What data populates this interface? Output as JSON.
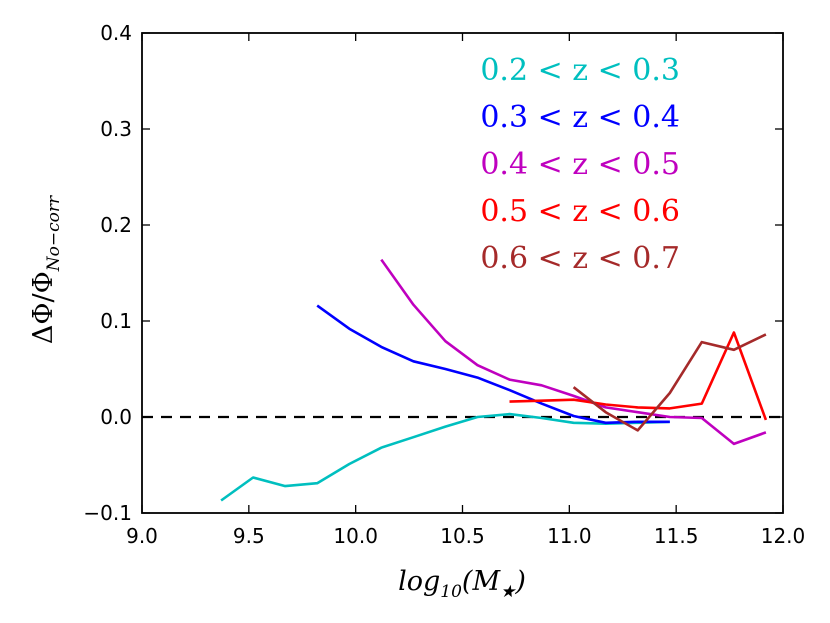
{
  "chart_data": {
    "type": "line",
    "title": "",
    "xlabel": "log10(M★)",
    "ylabel": "ΔΦ/Φ_No−corr",
    "xlim": [
      9.0,
      12.0
    ],
    "ylim": [
      -0.1,
      0.4
    ],
    "xticks": [
      9.0,
      9.5,
      10.0,
      10.5,
      11.0,
      11.5,
      12.0
    ],
    "xtick_labels": [
      "9.0",
      "9.5",
      "10.0",
      "10.5",
      "11.0",
      "11.5",
      "12.0"
    ],
    "yticks": [
      -0.1,
      0.0,
      0.1,
      0.2,
      0.3,
      0.4
    ],
    "ytick_labels": [
      "−0.1",
      "0.0",
      "0.1",
      "0.2",
      "0.3",
      "0.4"
    ],
    "reference_line": {
      "y": 0.0,
      "style": "dashed",
      "color": "#000000"
    },
    "legend_position": "top-right",
    "series": [
      {
        "name": "0.2 < z < 0.3",
        "color": "#00BFBF",
        "x": [
          9.37,
          9.52,
          9.67,
          9.82,
          9.97,
          10.12,
          10.27,
          10.42,
          10.57,
          10.72,
          10.87,
          11.02,
          11.17,
          11.32,
          11.47
        ],
        "y": [
          -0.087,
          -0.063,
          -0.072,
          -0.069,
          -0.049,
          -0.032,
          -0.021,
          -0.01,
          0.0,
          0.003,
          -0.001,
          -0.006,
          -0.007,
          -0.006,
          -0.005
        ]
      },
      {
        "name": "0.3 < z < 0.4",
        "color": "#0000FF",
        "x": [
          9.82,
          9.97,
          10.12,
          10.27,
          10.42,
          10.57,
          10.72,
          10.87,
          11.02,
          11.17,
          11.32,
          11.47
        ],
        "y": [
          0.116,
          0.092,
          0.073,
          0.058,
          0.05,
          0.041,
          0.028,
          0.014,
          0.001,
          -0.006,
          -0.005,
          -0.005
        ]
      },
      {
        "name": "0.4 < z < 0.5",
        "color": "#BF00BF",
        "x": [
          10.12,
          10.27,
          10.42,
          10.57,
          10.72,
          10.87,
          11.02,
          11.17,
          11.32,
          11.47,
          11.62,
          11.77,
          11.92
        ],
        "y": [
          0.164,
          0.117,
          0.079,
          0.054,
          0.039,
          0.033,
          0.022,
          0.01,
          0.005,
          0.0,
          -0.001,
          -0.028,
          -0.016
        ]
      },
      {
        "name": "0.5 < z < 0.6",
        "color": "#FF0000",
        "x": [
          10.72,
          10.87,
          11.02,
          11.17,
          11.32,
          11.47,
          11.62,
          11.77,
          11.92
        ],
        "y": [
          0.016,
          0.017,
          0.018,
          0.013,
          0.01,
          0.009,
          0.014,
          0.088,
          -0.003
        ]
      },
      {
        "name": "0.6 < z < 0.7",
        "color": "#A52A2A",
        "x": [
          11.02,
          11.17,
          11.32,
          11.47,
          11.62,
          11.77,
          11.92
        ],
        "y": [
          0.031,
          0.005,
          -0.014,
          0.025,
          0.078,
          0.07,
          0.086
        ]
      }
    ]
  }
}
